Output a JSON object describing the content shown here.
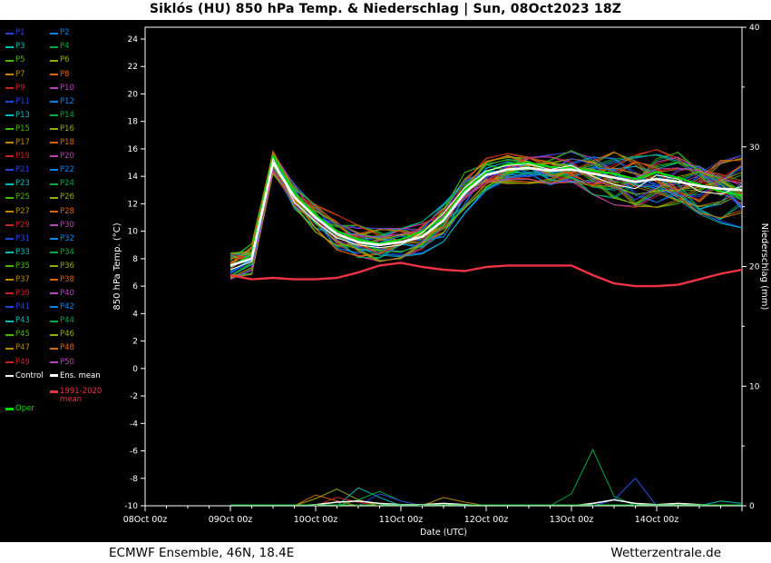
{
  "title": "Siklós  (HU)  850 hPa Temp. & Niederschlag | Sun, 08Oct2023 18Z",
  "footer": {
    "left": "ECMWF Ensemble, 46N, 18.4E",
    "right": "Wetterzentrale.de"
  },
  "legend": {
    "member_labels": [
      "P1",
      "P2",
      "P3",
      "P4",
      "P5",
      "P6",
      "P7",
      "P8",
      "P9",
      "P10",
      "P11",
      "P12",
      "P13",
      "P14",
      "P15",
      "P16",
      "P17",
      "P18",
      "P19",
      "P20",
      "P21",
      "P22",
      "P23",
      "P24",
      "P25",
      "P26",
      "P27",
      "P28",
      "P29",
      "P30",
      "P31",
      "P32",
      "P33",
      "P34",
      "P35",
      "P36",
      "P37",
      "P38",
      "P39",
      "P40",
      "P41",
      "P42",
      "P43",
      "P44",
      "P45",
      "P46",
      "P47",
      "P48",
      "P49",
      "P50"
    ],
    "control_label": "Control",
    "control_color": "#ffffff",
    "ens_mean_label": "Ens. mean",
    "ens_mean_color": "#ffffff",
    "oper_label": "Oper",
    "oper_color": "#00dd00",
    "climate_line1": "1991-2020",
    "climate_line2": "mean",
    "climate_color": "#ee3344"
  },
  "chart_data": {
    "type": "line",
    "title": "Siklós  (HU)  850 hPa Temp. & Niederschlag | Sun, 08Oct2023 18Z",
    "x_axis": {
      "label": "Date (UTC)",
      "tick_labels": [
        "08Oct 00z",
        "09Oct 00z",
        "10Oct 00z",
        "11Oct 00z",
        "12Oct 00z",
        "13Oct 00z",
        "14Oct 00z"
      ],
      "tick_hours": [
        0,
        24,
        48,
        72,
        96,
        120,
        144
      ],
      "range_hours": [
        0,
        168
      ],
      "minor_step_hours": 6
    },
    "left_axis": {
      "label": "850 hPa Temp. (°C)",
      "min": -10,
      "max": 24,
      "tick_step": 2,
      "ticks": [
        24,
        22,
        20,
        18,
        16,
        14,
        12,
        10,
        8,
        6,
        4,
        2,
        0,
        -2,
        -4,
        -6,
        -8,
        -10
      ]
    },
    "right_axis": {
      "label": "Niederschlag (mm)",
      "min": 0,
      "max": 40,
      "ticks": [
        40,
        30,
        20,
        10,
        0
      ]
    },
    "time_hours": [
      24,
      30,
      36,
      42,
      48,
      54,
      60,
      66,
      72,
      78,
      84,
      90,
      96,
      102,
      108,
      114,
      120,
      126,
      132,
      138,
      144,
      150,
      156,
      162,
      168
    ],
    "series": {
      "ens_mean": {
        "name": "Ens. mean",
        "color": "#ffffff",
        "width": 2.6,
        "values": [
          7.5,
          8.0,
          15.0,
          12.5,
          11.0,
          9.8,
          9.2,
          9.0,
          9.2,
          9.6,
          10.8,
          12.8,
          14.1,
          14.5,
          14.6,
          14.4,
          14.5,
          14.2,
          13.9,
          13.6,
          13.8,
          13.6,
          13.3,
          13.1,
          13.0
        ]
      },
      "control": {
        "name": "Control",
        "color": "#ffffff",
        "width": 1.0,
        "values": [
          7.2,
          7.8,
          15.3,
          12.1,
          10.7,
          9.5,
          9.0,
          8.8,
          9.0,
          9.9,
          11.3,
          13.2,
          14.4,
          14.8,
          14.9,
          14.5,
          14.8,
          14.0,
          13.4,
          13.1,
          14.1,
          13.8,
          12.9,
          12.7,
          13.3
        ]
      },
      "oper": {
        "name": "Oper",
        "color": "#00dd00",
        "width": 2.0,
        "values": [
          7.4,
          8.3,
          15.5,
          12.8,
          11.2,
          10.0,
          9.4,
          9.1,
          9.4,
          10.0,
          11.0,
          13.0,
          14.3,
          14.9,
          15.0,
          14.7,
          14.6,
          14.4,
          14.2,
          13.8,
          14.3,
          13.9,
          13.4,
          12.9,
          12.6
        ]
      },
      "climate_mean": {
        "name": "1991-2020 mean",
        "color": "#ee3344",
        "width": 2.4,
        "values": [
          6.8,
          6.5,
          6.6,
          6.5,
          6.5,
          6.6,
          7.0,
          7.5,
          7.7,
          7.4,
          7.2,
          7.1,
          7.4,
          7.5,
          7.5,
          7.5,
          7.5,
          6.8,
          6.2,
          6.0,
          6.0,
          6.1,
          6.5,
          6.9,
          7.2
        ]
      }
    },
    "ensemble_count": 50,
    "ensemble_spread": [
      1.2,
      1.0,
      0.8,
      1.1,
      1.2,
      1.2,
      1.1,
      1.1,
      1.1,
      1.1,
      1.3,
      1.3,
      1.1,
      1.0,
      1.0,
      1.1,
      1.2,
      1.5,
      1.8,
      1.9,
      1.8,
      1.9,
      2.1,
      2.2,
      2.3
    ],
    "palette": [
      "#2244dd",
      "#0088ee",
      "#00bbbb",
      "#00aa44",
      "#44bb00",
      "#99aa00",
      "#bb8800",
      "#dd6600",
      "#cc2222",
      "#bb44bb"
    ],
    "precipitation": {
      "baseline_color": "#00bb22",
      "mean_color": "#ffffff",
      "mean_values": [
        0,
        0,
        0,
        0,
        0.1,
        0.3,
        0.4,
        0.2,
        0.1,
        0.1,
        0.2,
        0.1,
        0,
        0,
        0,
        0,
        0,
        0.2,
        0.5,
        0.2,
        0.1,
        0.2,
        0.1,
        0,
        0
      ],
      "member_bumps": [
        {
          "color": "#99aa00",
          "t": [
            42,
            48,
            54,
            60,
            66
          ],
          "v": [
            0,
            0.6,
            1.4,
            0.5,
            0
          ]
        },
        {
          "color": "#dd6600",
          "t": [
            42,
            48,
            54,
            60
          ],
          "v": [
            0,
            0.9,
            0.4,
            0
          ]
        },
        {
          "color": "#00bbbb",
          "t": [
            54,
            60,
            66,
            72
          ],
          "v": [
            0,
            1.5,
            0.7,
            0
          ]
        },
        {
          "color": "#00aa44",
          "t": [
            54,
            60,
            66,
            72,
            78
          ],
          "v": [
            0,
            0.5,
            1.2,
            0.4,
            0
          ]
        },
        {
          "color": "#2244dd",
          "t": [
            60,
            66,
            72,
            78
          ],
          "v": [
            0,
            1.0,
            0.4,
            0
          ]
        },
        {
          "color": "#cc2222",
          "t": [
            48,
            54,
            60,
            66
          ],
          "v": [
            0,
            0.7,
            0.3,
            0
          ]
        },
        {
          "color": "#bb8800",
          "t": [
            78,
            84,
            90,
            96
          ],
          "v": [
            0,
            0.7,
            0.3,
            0
          ]
        },
        {
          "color": "#00aa44",
          "t": [
            114,
            120,
            126,
            132,
            138
          ],
          "v": [
            0,
            1.0,
            4.7,
            0.8,
            0
          ]
        },
        {
          "color": "#2255ee",
          "t": [
            126,
            132,
            138,
            144
          ],
          "v": [
            0,
            0.5,
            2.3,
            0
          ]
        },
        {
          "color": "#00bbbb",
          "t": [
            156,
            162,
            168
          ],
          "v": [
            0,
            0.4,
            0.2
          ]
        }
      ]
    }
  }
}
